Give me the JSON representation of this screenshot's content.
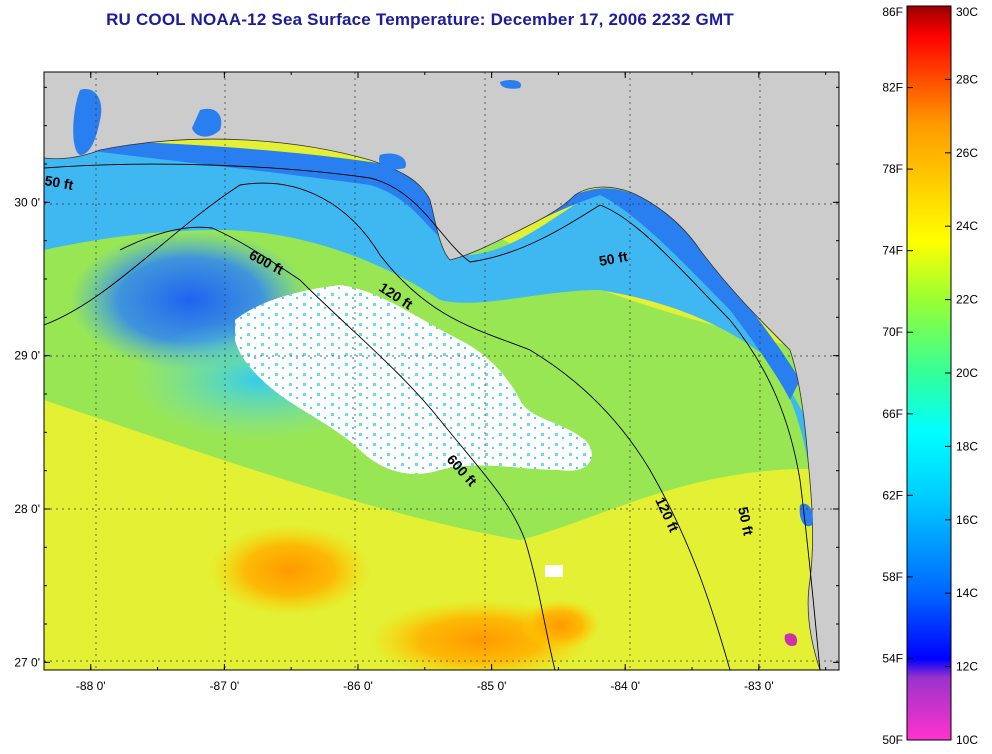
{
  "title": "RU COOL  NOAA-12  Sea Surface Temperature:  December 17, 2006 2232 GMT",
  "map": {
    "lon_range": [
      -88.35,
      -82.4
    ],
    "lat_range": [
      26.95,
      30.85
    ],
    "x_ticks": [
      {
        "value": -88,
        "label": "-88 0'"
      },
      {
        "value": -87,
        "label": "-87 0'"
      },
      {
        "value": -86,
        "label": "-86 0'"
      },
      {
        "value": -85,
        "label": "-85 0'"
      },
      {
        "value": -84,
        "label": "-84 0'"
      },
      {
        "value": -83,
        "label": "-83 0'"
      }
    ],
    "y_ticks": [
      {
        "value": 27,
        "label": "27 0'"
      },
      {
        "value": 28,
        "label": "28 0'"
      },
      {
        "value": 29,
        "label": "29 0'"
      },
      {
        "value": 30,
        "label": "30 0'"
      }
    ],
    "grid": "dotted",
    "contour_labels": [
      "50 ft",
      "600 ft",
      "120 ft",
      "50 ft",
      "600 ft",
      "120 ft",
      "50 ft"
    ],
    "colors": {
      "land": "#cccccc",
      "cloud": "#ffffff"
    }
  },
  "colorbar": {
    "fahrenheit": [
      "86F",
      "82F",
      "78F",
      "74F",
      "70F",
      "66F",
      "62F",
      "58F",
      "54F",
      "50F"
    ],
    "celsius": [
      "30C",
      "28C",
      "26C",
      "24C",
      "22C",
      "20C",
      "18C",
      "16C",
      "14C",
      "12C",
      "10C"
    ],
    "range_c": [
      10,
      30
    ],
    "colors": [
      "#ff33cc",
      "#9933cc",
      "#0000ff",
      "#0066ff",
      "#00ccff",
      "#00ffff",
      "#33ff99",
      "#99ff33",
      "#ffff00",
      "#ffcc00",
      "#ff9900",
      "#ff3300",
      "#ff0000",
      "#990000"
    ]
  }
}
